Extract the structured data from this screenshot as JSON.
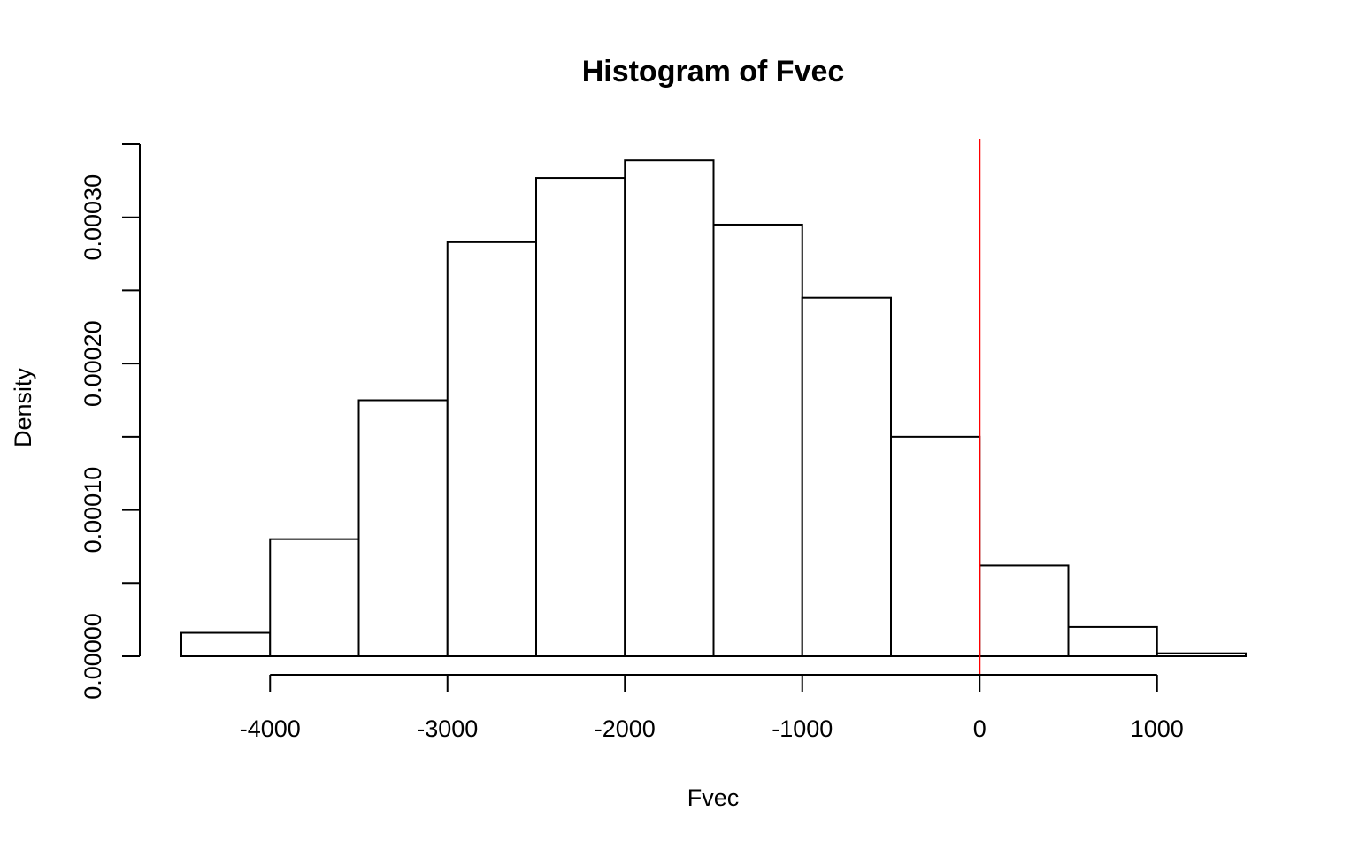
{
  "chart_data": {
    "type": "bar",
    "title": "Histogram of Fvec",
    "xlabel": "Fvec",
    "ylabel": "Density",
    "bin_width": 500,
    "bins": [
      {
        "left": -4500,
        "right": -4000,
        "density": 1.6e-05
      },
      {
        "left": -4000,
        "right": -3500,
        "density": 8e-05
      },
      {
        "left": -3500,
        "right": -3000,
        "density": 0.000175
      },
      {
        "left": -3000,
        "right": -2500,
        "density": 0.000283
      },
      {
        "left": -2500,
        "right": -2000,
        "density": 0.000327
      },
      {
        "left": -2000,
        "right": -1500,
        "density": 0.000339
      },
      {
        "left": -1500,
        "right": -1000,
        "density": 0.000295
      },
      {
        "left": -1000,
        "right": -500,
        "density": 0.000245
      },
      {
        "left": -500,
        "right": 0,
        "density": 0.00015
      },
      {
        "left": 0,
        "right": 500,
        "density": 6.2e-05
      },
      {
        "left": 500,
        "right": 1000,
        "density": 2e-05
      },
      {
        "left": 1000,
        "right": 1500,
        "density": 2e-06
      }
    ],
    "xlim": [
      -4500,
      1500
    ],
    "ylim": [
      0,
      0.00035
    ],
    "x_ticks": [
      -4000,
      -3000,
      -2000,
      -1000,
      0,
      1000
    ],
    "x_tick_labels": [
      "-4000",
      "-3000",
      "-2000",
      "-1000",
      "0",
      "1000"
    ],
    "y_ticks": [
      0,
      5e-05,
      0.0001,
      0.00015,
      0.0002,
      0.00025,
      0.0003,
      0.00035
    ],
    "y_tick_labels": [
      "0.00000",
      "0.00010",
      "0.00020",
      "0.00030"
    ],
    "y_labeled_ticks": [
      0,
      0.0001,
      0.0002,
      0.0003
    ],
    "vline": {
      "x": 0,
      "color": "#ff0000"
    },
    "bar_fill": "#ffffff",
    "bar_stroke": "#000000",
    "grid": false
  }
}
